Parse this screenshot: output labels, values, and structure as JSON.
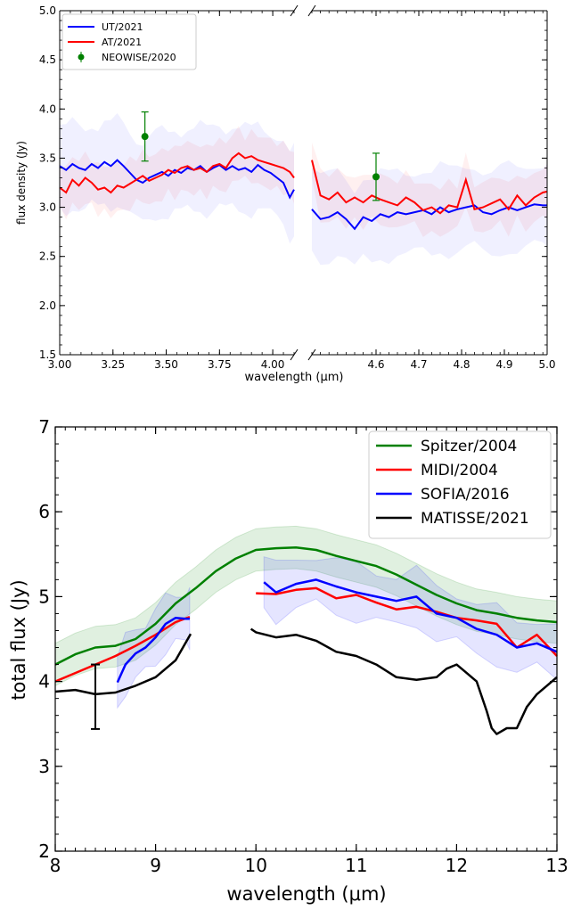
{
  "chart_data": [
    {
      "type": "line",
      "xlabel": "wavelength (μm)",
      "ylabel": "flux density (Jy)",
      "ylim": [
        1.5,
        5.0
      ],
      "broken_x_axis": true,
      "x_segments": [
        {
          "xlim": [
            3.0,
            4.1
          ],
          "ticks": [
            "3.00",
            "3.25",
            "3.50",
            "3.75",
            "4.00"
          ]
        },
        {
          "xlim": [
            4.45,
            5.0
          ],
          "ticks": [
            "4.6",
            "4.7",
            "4.8",
            "4.9",
            "5.0"
          ]
        }
      ],
      "yticks": [
        "1.5",
        "2.0",
        "2.5",
        "3.0",
        "3.5",
        "4.0",
        "4.5",
        "5.0"
      ],
      "legend": {
        "position": "top-left"
      },
      "series": [
        {
          "name": "UT/2021",
          "color": "#0000ff",
          "segments": [
            {
              "x": [
                3.0,
                3.03,
                3.06,
                3.09,
                3.12,
                3.15,
                3.18,
                3.21,
                3.24,
                3.27,
                3.3,
                3.33,
                3.36,
                3.39,
                3.42,
                3.45,
                3.48,
                3.51,
                3.54,
                3.57,
                3.6,
                3.63,
                3.66,
                3.69,
                3.72,
                3.75,
                3.78,
                3.81,
                3.84,
                3.87,
                3.9,
                3.93,
                3.96,
                3.99,
                4.02,
                4.05,
                4.08,
                4.1
              ],
              "y": [
                3.42,
                3.38,
                3.44,
                3.4,
                3.38,
                3.44,
                3.4,
                3.46,
                3.42,
                3.48,
                3.42,
                3.35,
                3.28,
                3.25,
                3.3,
                3.33,
                3.36,
                3.32,
                3.38,
                3.35,
                3.4,
                3.38,
                3.42,
                3.36,
                3.4,
                3.43,
                3.38,
                3.42,
                3.38,
                3.4,
                3.36,
                3.43,
                3.38,
                3.35,
                3.3,
                3.25,
                3.1,
                3.18
              ]
            },
            {
              "x": [
                4.45,
                4.47,
                4.49,
                4.51,
                4.53,
                4.55,
                4.57,
                4.59,
                4.61,
                4.63,
                4.65,
                4.67,
                4.69,
                4.71,
                4.73,
                4.75,
                4.77,
                4.79,
                4.81,
                4.83,
                4.85,
                4.87,
                4.89,
                4.91,
                4.93,
                4.95,
                4.97,
                4.99,
                5.0
              ],
              "y": [
                2.98,
                2.88,
                2.9,
                2.95,
                2.88,
                2.78,
                2.9,
                2.86,
                2.93,
                2.9,
                2.95,
                2.93,
                2.95,
                2.97,
                2.93,
                3.0,
                2.95,
                2.98,
                3.0,
                3.02,
                2.95,
                2.93,
                2.97,
                3.0,
                2.97,
                3.0,
                3.03,
                3.02,
                3.02
              ]
            }
          ]
        },
        {
          "name": "AT/2021",
          "color": "#ff0000",
          "segments": [
            {
              "x": [
                3.0,
                3.03,
                3.06,
                3.09,
                3.12,
                3.15,
                3.18,
                3.21,
                3.24,
                3.27,
                3.3,
                3.33,
                3.36,
                3.39,
                3.42,
                3.45,
                3.48,
                3.51,
                3.54,
                3.57,
                3.6,
                3.63,
                3.66,
                3.69,
                3.72,
                3.75,
                3.78,
                3.81,
                3.84,
                3.87,
                3.9,
                3.93,
                3.96,
                3.99,
                4.02,
                4.05,
                4.08,
                4.1
              ],
              "y": [
                3.2,
                3.15,
                3.28,
                3.22,
                3.3,
                3.25,
                3.18,
                3.2,
                3.15,
                3.22,
                3.2,
                3.24,
                3.28,
                3.32,
                3.27,
                3.3,
                3.33,
                3.38,
                3.35,
                3.4,
                3.42,
                3.38,
                3.4,
                3.36,
                3.42,
                3.44,
                3.4,
                3.5,
                3.55,
                3.5,
                3.52,
                3.48,
                3.46,
                3.44,
                3.42,
                3.4,
                3.36,
                3.3
              ]
            },
            {
              "x": [
                4.45,
                4.47,
                4.49,
                4.51,
                4.53,
                4.55,
                4.57,
                4.59,
                4.61,
                4.63,
                4.65,
                4.67,
                4.69,
                4.71,
                4.73,
                4.75,
                4.77,
                4.79,
                4.81,
                4.83,
                4.85,
                4.87,
                4.89,
                4.91,
                4.93,
                4.95,
                4.97,
                4.99,
                5.0
              ],
              "y": [
                3.48,
                3.12,
                3.08,
                3.15,
                3.05,
                3.1,
                3.05,
                3.12,
                3.08,
                3.05,
                3.02,
                3.1,
                3.05,
                2.97,
                3.0,
                2.94,
                3.02,
                3.0,
                3.28,
                2.98,
                3.0,
                3.04,
                3.08,
                2.98,
                3.12,
                3.02,
                3.1,
                3.15,
                3.16
              ]
            }
          ]
        },
        {
          "name": "NEOWISE/2020",
          "color": "#008000",
          "marker": "errorbar",
          "points": [
            {
              "x": 3.4,
              "y": 3.72,
              "yerr": 0.25
            },
            {
              "x": 4.6,
              "y": 3.31,
              "yerr": 0.24
            }
          ]
        }
      ]
    },
    {
      "type": "line",
      "xlabel": "wavelength (μm)",
      "ylabel": "total flux (Jy)",
      "xlim": [
        8,
        13
      ],
      "ylim": [
        2,
        7
      ],
      "xticks": [
        "8",
        "9",
        "10",
        "11",
        "12",
        "13"
      ],
      "yticks": [
        "2",
        "3",
        "4",
        "5",
        "6",
        "7"
      ],
      "legend": {
        "position": "top-right"
      },
      "series": [
        {
          "name": "Spitzer/2004",
          "color": "#008000",
          "x": [
            8.0,
            8.2,
            8.4,
            8.6,
            8.8,
            9.0,
            9.2,
            9.4,
            9.6,
            9.8,
            10.0,
            10.2,
            10.4,
            10.6,
            10.8,
            11.0,
            11.2,
            11.4,
            11.6,
            11.8,
            12.0,
            12.2,
            12.4,
            12.6,
            12.8,
            13.0
          ],
          "y": [
            4.2,
            4.32,
            4.4,
            4.42,
            4.5,
            4.68,
            4.92,
            5.1,
            5.3,
            5.45,
            5.55,
            5.57,
            5.58,
            5.55,
            5.48,
            5.42,
            5.36,
            5.26,
            5.14,
            5.02,
            4.92,
            4.84,
            4.8,
            4.75,
            4.72,
            4.7
          ]
        },
        {
          "name": "MIDI/2004",
          "color": "#ff0000",
          "x": [
            8.0,
            8.2,
            8.4,
            8.6,
            8.8,
            9.0,
            9.2,
            9.34,
            10.0,
            10.2,
            10.4,
            10.6,
            10.8,
            11.0,
            11.2,
            11.4,
            11.6,
            11.8,
            12.0,
            12.2,
            12.4,
            12.6,
            12.8,
            13.0
          ],
          "y": [
            4.0,
            4.1,
            4.2,
            4.3,
            4.42,
            4.55,
            4.7,
            4.76,
            5.04,
            5.03,
            5.08,
            5.1,
            4.98,
            5.02,
            4.93,
            4.85,
            4.88,
            4.82,
            4.75,
            4.72,
            4.68,
            4.4,
            4.55,
            4.3
          ]
        },
        {
          "name": "SOFIA/2016",
          "color": "#0000ff",
          "x": [
            8.62,
            8.7,
            8.8,
            8.9,
            9.0,
            9.1,
            9.2,
            9.3,
            9.34,
            10.08,
            10.2,
            10.4,
            10.6,
            10.8,
            11.0,
            11.2,
            11.4,
            11.6,
            11.8,
            12.0,
            12.2,
            12.4,
            12.6,
            12.8,
            13.0
          ],
          "y": [
            3.99,
            4.2,
            4.33,
            4.4,
            4.52,
            4.68,
            4.75,
            4.74,
            4.74,
            5.17,
            5.05,
            5.15,
            5.2,
            5.12,
            5.05,
            5.0,
            4.95,
            5.0,
            4.8,
            4.75,
            4.62,
            4.55,
            4.4,
            4.45,
            4.35
          ]
        },
        {
          "name": "MATISSE/2021",
          "color": "#000000",
          "x": [
            8.0,
            8.2,
            8.4,
            8.6,
            8.8,
            9.0,
            9.2,
            9.35,
            9.95,
            10.0,
            10.2,
            10.4,
            10.6,
            10.8,
            11.0,
            11.2,
            11.4,
            11.6,
            11.8,
            11.9,
            12.0,
            12.1,
            12.2,
            12.3,
            12.35,
            12.4,
            12.5,
            12.6,
            12.7,
            12.8,
            12.9,
            13.0
          ],
          "y": [
            3.88,
            3.9,
            3.85,
            3.87,
            3.95,
            4.05,
            4.25,
            4.56,
            4.62,
            4.58,
            4.52,
            4.55,
            4.48,
            4.35,
            4.3,
            4.2,
            4.05,
            4.02,
            4.05,
            4.15,
            4.2,
            4.1,
            4.0,
            3.65,
            3.45,
            3.38,
            3.45,
            3.45,
            3.7,
            3.85,
            3.95,
            4.05
          ],
          "errorbar": {
            "x": 8.4,
            "y": 3.82,
            "yerr": 0.38
          }
        }
      ]
    }
  ]
}
